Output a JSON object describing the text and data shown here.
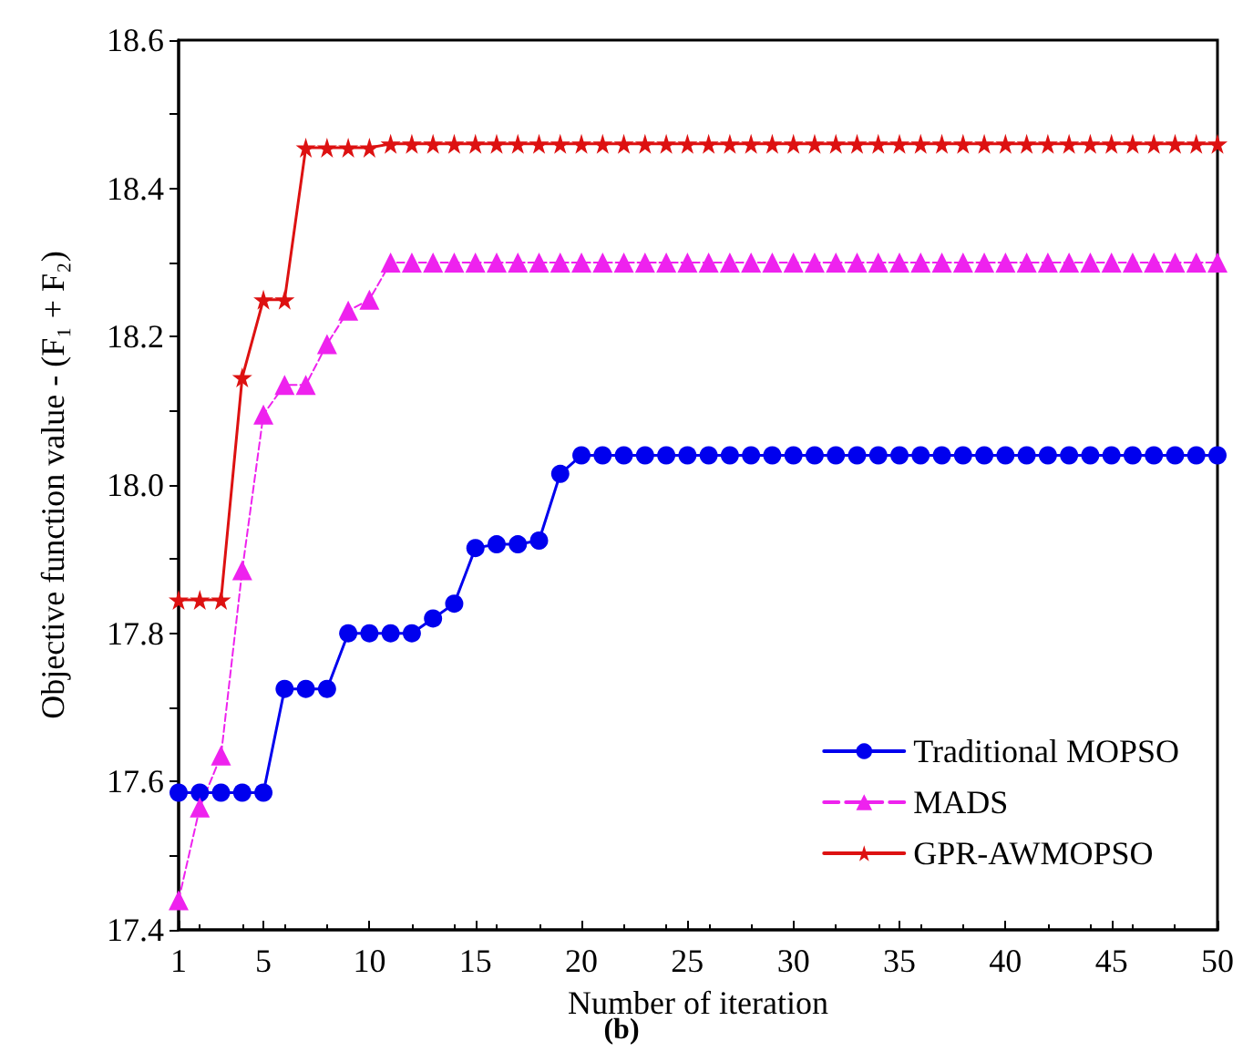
{
  "chart_data": {
    "type": "line",
    "xlabel": "Number of iteration",
    "ylabel": "Objective function value - (F₁ + F₂)",
    "annotations": [
      "(b)"
    ],
    "x": [
      1,
      2,
      3,
      4,
      5,
      6,
      7,
      8,
      9,
      10,
      11,
      12,
      13,
      14,
      15,
      16,
      17,
      18,
      19,
      20,
      21,
      22,
      23,
      24,
      25,
      26,
      27,
      28,
      29,
      30,
      31,
      32,
      33,
      34,
      35,
      36,
      37,
      38,
      39,
      40,
      41,
      42,
      43,
      44,
      45,
      46,
      47,
      48,
      49,
      50
    ],
    "series": [
      {
        "name": "Traditional MOPSO",
        "color": "#0000ee",
        "marker": "circle",
        "line_style": "solid",
        "values": [
          17.585,
          17.585,
          17.585,
          17.585,
          17.585,
          17.725,
          17.725,
          17.725,
          17.8,
          17.8,
          17.8,
          17.8,
          17.82,
          17.84,
          17.915,
          17.92,
          17.92,
          17.925,
          18.015,
          18.04,
          18.04,
          18.04,
          18.04,
          18.04,
          18.04,
          18.04,
          18.04,
          18.04,
          18.04,
          18.04,
          18.04,
          18.04,
          18.04,
          18.04,
          18.04,
          18.04,
          18.04,
          18.04,
          18.04,
          18.04,
          18.04,
          18.04,
          18.04,
          18.04,
          18.04,
          18.04,
          18.04,
          18.04,
          18.04,
          18.04
        ]
      },
      {
        "name": "MADS",
        "color": "#ee22ee",
        "marker": "triangle",
        "line_style": "dashed",
        "values": [
          17.44,
          17.565,
          17.635,
          17.885,
          18.095,
          18.135,
          18.135,
          18.19,
          18.235,
          18.25,
          18.3,
          18.3,
          18.3,
          18.3,
          18.3,
          18.3,
          18.3,
          18.3,
          18.3,
          18.3,
          18.3,
          18.3,
          18.3,
          18.3,
          18.3,
          18.3,
          18.3,
          18.3,
          18.3,
          18.3,
          18.3,
          18.3,
          18.3,
          18.3,
          18.3,
          18.3,
          18.3,
          18.3,
          18.3,
          18.3,
          18.3,
          18.3,
          18.3,
          18.3,
          18.3,
          18.3,
          18.3,
          18.3,
          18.3,
          18.3
        ]
      },
      {
        "name": "GPR-AWMOPSO",
        "color": "#dd1111",
        "marker": "star",
        "line_style": "solid",
        "values": [
          17.845,
          17.845,
          17.845,
          18.145,
          18.25,
          18.25,
          18.455,
          18.455,
          18.455,
          18.455,
          18.46,
          18.46,
          18.46,
          18.46,
          18.46,
          18.46,
          18.46,
          18.46,
          18.46,
          18.46,
          18.46,
          18.46,
          18.46,
          18.46,
          18.46,
          18.46,
          18.46,
          18.46,
          18.46,
          18.46,
          18.46,
          18.46,
          18.46,
          18.46,
          18.46,
          18.46,
          18.46,
          18.46,
          18.46,
          18.46,
          18.46,
          18.46,
          18.46,
          18.46,
          18.46,
          18.46,
          18.46,
          18.46,
          18.46,
          18.46
        ]
      }
    ],
    "xlim": [
      1,
      50
    ],
    "xticks": [
      1,
      5,
      10,
      15,
      20,
      25,
      30,
      35,
      40,
      45,
      50
    ],
    "ylim": [
      17.4,
      18.6
    ],
    "yticks": [
      17.4,
      17.6,
      17.8,
      {
        "value": 18,
        "label": "18.0"
      },
      18.2,
      18.4,
      18.6
    ],
    "grid": false,
    "legend": "bottom right"
  }
}
